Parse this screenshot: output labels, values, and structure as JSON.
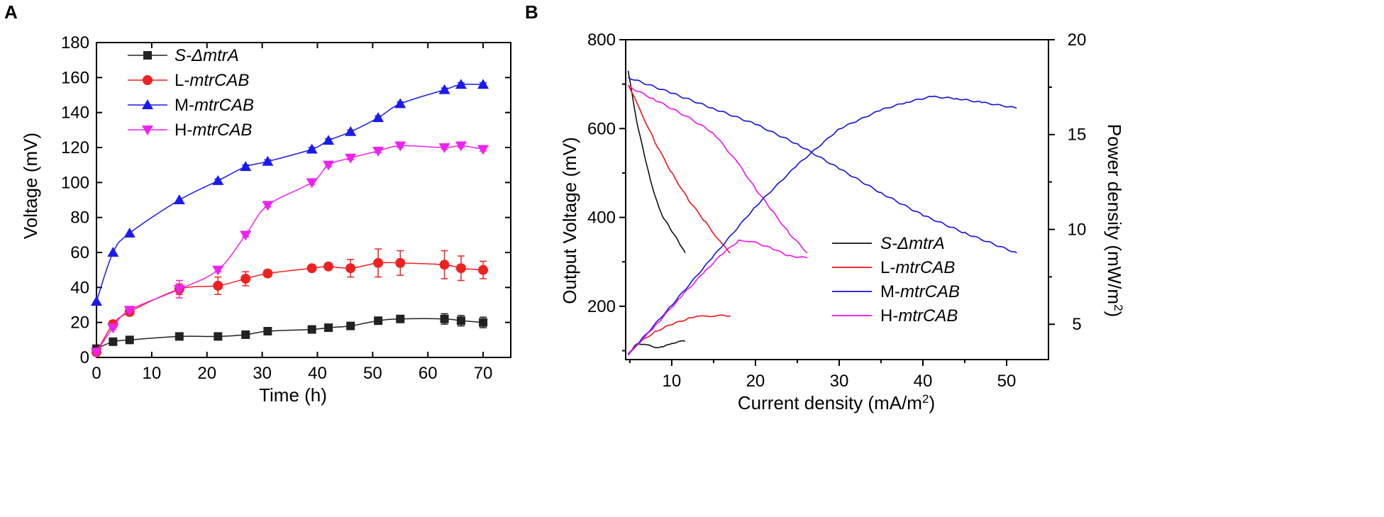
{
  "panels": [
    {
      "label": "A",
      "type": "line",
      "xlabel": "Time (h)",
      "ylabel": "Voltage (mV)",
      "xlim": [
        0,
        75
      ],
      "ylim": [
        0,
        180
      ],
      "xticks": [
        0,
        10,
        20,
        30,
        40,
        50,
        60,
        70
      ],
      "yticks": [
        0,
        20,
        40,
        60,
        80,
        100,
        120,
        140,
        160,
        180
      ],
      "legend_position": "top-left",
      "series": [
        {
          "prefix": "S-Δ",
          "name": "mtrA",
          "prefix_italic": true,
          "color": "#222222",
          "marker": "square",
          "x": [
            0,
            3,
            6,
            15,
            22,
            27,
            31,
            39,
            42,
            46,
            51,
            55,
            63,
            66,
            70
          ],
          "y": [
            5,
            9,
            10,
            12,
            12,
            13,
            15,
            16,
            17,
            18,
            21,
            22,
            22,
            21,
            20
          ],
          "err": [
            0,
            1,
            1,
            1,
            1,
            1,
            1,
            1,
            1,
            1,
            2,
            2,
            3,
            3,
            3
          ]
        },
        {
          "prefix": "L-",
          "name": "mtrCAB",
          "prefix_italic": false,
          "color": "#ee2222",
          "marker": "circle",
          "x": [
            0,
            3,
            6,
            15,
            22,
            27,
            31,
            39,
            42,
            46,
            51,
            55,
            63,
            66,
            70
          ],
          "y": [
            3,
            19,
            26,
            39,
            41,
            45,
            48,
            51,
            52,
            51,
            54,
            54,
            53,
            51,
            50
          ],
          "err": [
            1,
            2,
            2,
            3,
            5,
            4,
            2,
            1,
            1,
            5,
            8,
            7,
            8,
            7,
            5
          ]
        },
        {
          "prefix": "M-",
          "name": "mtrCAB",
          "prefix_italic": false,
          "color": "#1a1aee",
          "marker": "triangle-up",
          "x": [
            0,
            3,
            6,
            15,
            22,
            27,
            31,
            39,
            42,
            46,
            51,
            55,
            63,
            66,
            70
          ],
          "y": [
            32,
            60,
            71,
            90,
            101,
            109,
            112,
            119,
            124,
            129,
            137,
            145,
            153,
            156,
            156
          ],
          "err": [
            0,
            0,
            0,
            0,
            1,
            1,
            1,
            1,
            1,
            1,
            1,
            1,
            1,
            1,
            1
          ]
        },
        {
          "prefix": "H-",
          "name": "mtrCAB",
          "prefix_italic": false,
          "color": "#ee22ee",
          "marker": "triangle-down",
          "x": [
            0,
            3,
            6,
            15,
            22,
            27,
            31,
            39,
            42,
            46,
            51,
            55,
            63,
            66,
            70
          ],
          "y": [
            3,
            17,
            27,
            39,
            50,
            70,
            87,
            100,
            110,
            114,
            118,
            121,
            120,
            121,
            119
          ],
          "err": [
            1,
            1,
            1,
            5,
            1,
            1,
            1,
            1,
            1,
            1,
            1,
            1,
            1,
            1,
            1
          ]
        }
      ]
    },
    {
      "label": "B",
      "type": "line",
      "xlabel": "Current density (mA/m",
      "xlabel_sup": "2",
      "xlabel_end": ")",
      "ylabel": "Output Voltage (mV)",
      "y2label": "Power density (mW/m",
      "y2label_sup": "2",
      "y2label_end": ")",
      "xlim": [
        4.5,
        55
      ],
      "ylim": [
        80,
        800
      ],
      "y2lim": [
        3.14,
        20
      ],
      "xticks": [
        10,
        20,
        30,
        40,
        50
      ],
      "yticks": [
        200,
        400,
        600,
        800
      ],
      "y2ticks": [
        5,
        10,
        15,
        20
      ],
      "legend_position": "bottom-right",
      "voltage_series": [
        {
          "prefix": "S-Δ",
          "name": "mtrA",
          "prefix_italic": true,
          "color": "#111111",
          "x": [
            4.8,
            5.5,
            6,
            6.5,
            7,
            7.5,
            8,
            8.5,
            9,
            9.5,
            10,
            10.5,
            11,
            11.6
          ],
          "y": [
            730,
            650,
            600,
            560,
            520,
            480,
            450,
            420,
            400,
            385,
            370,
            355,
            340,
            320
          ]
        },
        {
          "prefix": "L-",
          "name": "mtrCAB",
          "prefix_italic": false,
          "color": "#ee1111",
          "x": [
            4.8,
            6,
            8,
            10,
            12,
            14,
            15,
            16,
            17
          ],
          "y": [
            700,
            650,
            570,
            500,
            440,
            390,
            365,
            340,
            320
          ]
        },
        {
          "prefix": "M-",
          "name": "mtrCAB",
          "prefix_italic": false,
          "color": "#1111dd",
          "x": [
            4.8,
            10,
            15,
            20,
            25,
            30,
            35,
            40,
            45,
            51.2
          ],
          "y": [
            715,
            680,
            645,
            610,
            565,
            510,
            455,
            405,
            365,
            320
          ]
        },
        {
          "prefix": "H-",
          "name": "mtrCAB",
          "prefix_italic": false,
          "color": "#ee11ee",
          "x": [
            4.8,
            8,
            12,
            15,
            18,
            20,
            22,
            24,
            26.2
          ],
          "y": [
            695,
            665,
            625,
            590,
            520,
            465,
            415,
            365,
            320
          ]
        }
      ],
      "power_series": [
        {
          "name": "S-ΔmtrA power",
          "color": "#111111",
          "x": [
            4.8,
            5.5,
            6,
            7,
            8,
            9,
            10,
            11,
            11.6
          ],
          "y": [
            3.4,
            3.8,
            4.0,
            3.9,
            3.8,
            3.8,
            4.0,
            4.1,
            4.1
          ]
        },
        {
          "name": "L-mtrCAB power",
          "color": "#ee1111",
          "x": [
            4.8,
            6,
            8,
            10,
            12,
            13,
            14,
            15,
            16,
            17
          ],
          "y": [
            3.4,
            4.0,
            4.6,
            5.0,
            5.3,
            5.45,
            5.4,
            5.45,
            5.45,
            5.45
          ]
        },
        {
          "name": "M-mtrCAB power",
          "color": "#1111dd",
          "x": [
            4.8,
            10,
            15,
            20,
            25,
            30,
            35,
            38,
            41,
            44,
            47,
            51.2
          ],
          "y": [
            3.4,
            6.0,
            8.6,
            11.2,
            13.4,
            15.3,
            16.3,
            16.7,
            17.0,
            16.9,
            16.7,
            16.4
          ]
        },
        {
          "name": "H-mtrCAB power",
          "color": "#ee11ee",
          "x": [
            4.8,
            8,
            11,
            14,
            16,
            18,
            19,
            20,
            22,
            24,
            26.2
          ],
          "y": [
            3.4,
            4.9,
            6.4,
            7.8,
            8.7,
            9.4,
            9.4,
            9.3,
            9.0,
            8.6,
            8.5
          ]
        }
      ]
    }
  ]
}
